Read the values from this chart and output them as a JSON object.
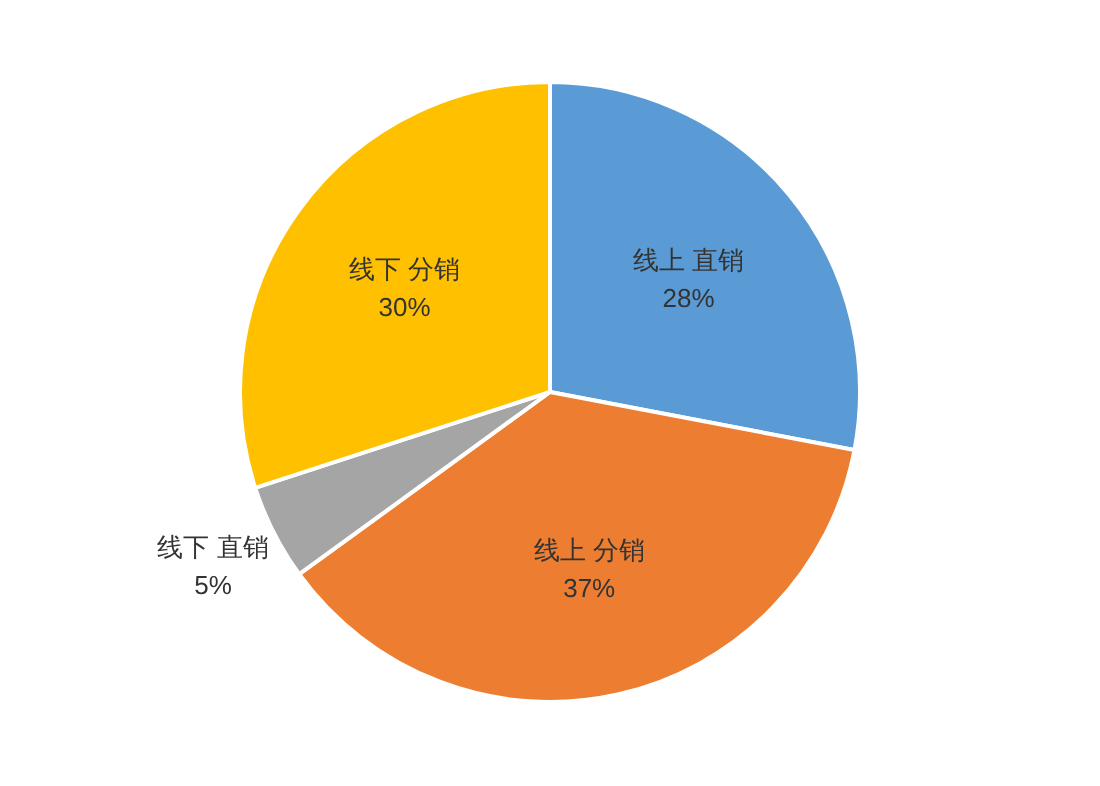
{
  "chart_data": {
    "type": "pie",
    "categories": [
      "线上 直销",
      "线上 分销",
      "线下 直销",
      "线下 分销"
    ],
    "values": [
      28,
      37,
      5,
      30
    ],
    "colors": [
      "#5b9bd5",
      "#ed7d31",
      "#a5a5a5",
      "#ffc000"
    ],
    "value_labels": [
      "28%",
      "37%",
      "5%",
      "30%"
    ]
  }
}
